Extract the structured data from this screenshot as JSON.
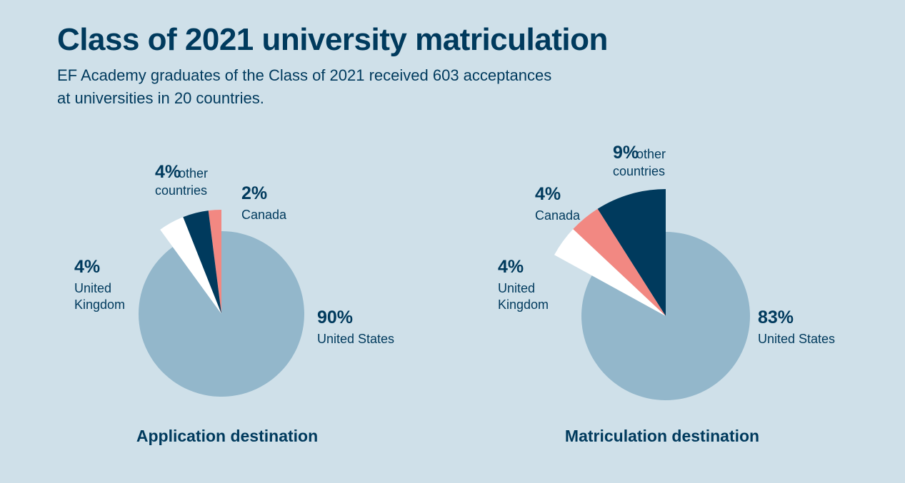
{
  "title": "Class of 2021 university matriculation",
  "subtitle_lines": [
    "EF Academy graduates of the Class of 2021 received 603 acceptances",
    "at universities in 20 countries."
  ],
  "colors": {
    "background": "#cfe0e9",
    "text": "#003a5d",
    "united_states": "#93b7cb",
    "united_kingdom": "#ffffff",
    "other_countries": "#003a5d",
    "canada": "#f28882"
  },
  "chart_data": [
    {
      "type": "pie",
      "title": "Application destination",
      "slices": [
        {
          "label_lines": [
            "Canada"
          ],
          "pct_text": "2%",
          "value": 2,
          "color": "#f28882"
        },
        {
          "label_lines": [
            "other",
            "countries"
          ],
          "pct_text": "4%",
          "value": 4,
          "color": "#003a5d"
        },
        {
          "label_lines": [
            "United",
            "Kingdom"
          ],
          "pct_text": "4%",
          "value": 4,
          "color": "#ffffff"
        },
        {
          "label_lines": [
            "United States"
          ],
          "pct_text": "90%",
          "value": 90,
          "color": "#93b7cb"
        }
      ]
    },
    {
      "type": "pie",
      "title": "Matriculation destination",
      "slices": [
        {
          "label_lines": [
            "other",
            "countries"
          ],
          "pct_text": "9%",
          "value": 9,
          "color": "#003a5d"
        },
        {
          "label_lines": [
            "Canada"
          ],
          "pct_text": "4%",
          "value": 4,
          "color": "#f28882"
        },
        {
          "label_lines": [
            "United",
            "Kingdom"
          ],
          "pct_text": "4%",
          "value": 4,
          "color": "#ffffff"
        },
        {
          "label_lines": [
            "United States"
          ],
          "pct_text": "83%",
          "value": 83,
          "color": "#93b7cb"
        }
      ]
    }
  ]
}
